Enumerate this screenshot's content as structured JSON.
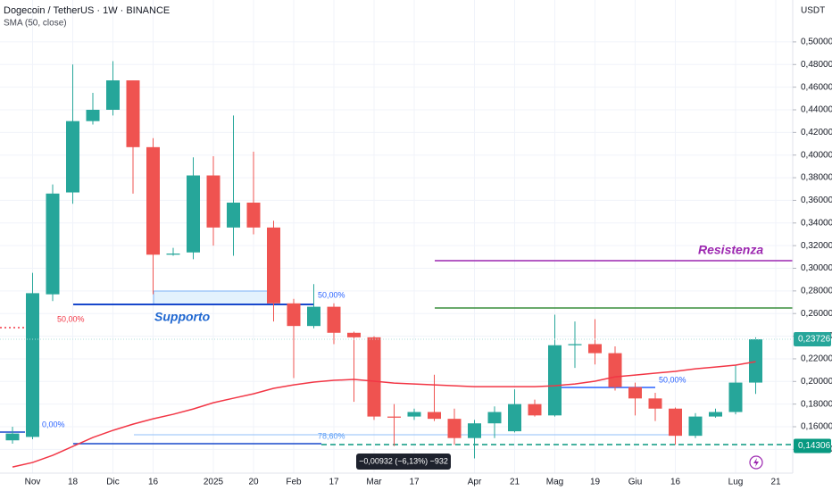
{
  "chart_data": {
    "type": "candlestick",
    "title": "Dogecoin / TetherUS · 1W · BINANCE",
    "y_axis_label": "USDT",
    "categories": [
      null,
      "Nov",
      null,
      "18",
      null,
      "Dic",
      null,
      "16",
      null,
      null,
      "2025",
      null,
      "20",
      null,
      "Feb",
      null,
      "17",
      null,
      "Mar",
      null,
      "17",
      null,
      null,
      "Apr",
      null,
      "21",
      null,
      "Mag",
      null,
      "19",
      null,
      "Giu",
      null,
      "16",
      null,
      null,
      "Lug",
      null,
      "21"
    ],
    "open": [
      0.148,
      0.151,
      0.277,
      0.367,
      0.43,
      0.44,
      0.466,
      0.407,
      0.312,
      0.314,
      0.382,
      0.336,
      0.358,
      0.336,
      0.269,
      0.249,
      0.266,
      0.243,
      0.239,
      0.169,
      0.169,
      0.173,
      0.167,
      0.15,
      0.163,
      0.156,
      0.18,
      0.17,
      0.232,
      0.233,
      0.225,
      0.195,
      0.185,
      0.176,
      0.152,
      0.169,
      0.173,
      0.199,
      null
    ],
    "high": [
      0.16,
      0.296,
      0.374,
      0.48,
      0.455,
      0.483,
      0.466,
      0.415,
      0.318,
      0.398,
      0.399,
      0.435,
      0.403,
      0.342,
      0.273,
      0.286,
      0.269,
      0.244,
      0.24,
      0.18,
      0.176,
      0.206,
      0.176,
      0.166,
      0.178,
      0.193,
      0.184,
      0.259,
      0.253,
      0.255,
      0.231,
      0.199,
      0.19,
      0.177,
      0.172,
      0.176,
      0.214,
      0.239,
      null
    ],
    "low": [
      0.145,
      0.149,
      0.271,
      0.357,
      0.427,
      0.435,
      0.366,
      0.277,
      0.311,
      0.308,
      0.32,
      0.311,
      0.33,
      0.253,
      0.203,
      0.247,
      0.233,
      0.182,
      0.166,
      0.143,
      0.166,
      0.165,
      0.144,
      0.132,
      0.15,
      0.155,
      0.169,
      0.169,
      0.212,
      0.215,
      0.192,
      0.17,
      0.165,
      0.144,
      0.15,
      0.168,
      0.171,
      0.189,
      null
    ],
    "close": [
      0.154,
      0.278,
      0.366,
      0.43,
      0.44,
      0.466,
      0.407,
      0.312,
      0.313,
      0.382,
      0.336,
      0.358,
      0.336,
      0.269,
      0.249,
      0.266,
      0.243,
      0.239,
      0.169,
      0.168,
      0.173,
      0.167,
      0.15,
      0.163,
      0.173,
      0.18,
      0.17,
      0.232,
      0.233,
      0.225,
      0.195,
      0.185,
      0.176,
      0.152,
      0.169,
      0.173,
      0.199,
      0.23726,
      null
    ],
    "up_color": "#26a69a",
    "down_color": "#ef5350",
    "sma": {
      "name": "SMA (50, close)",
      "color": "#f23645",
      "values": [
        0.1244,
        0.1284,
        0.1347,
        0.1426,
        0.1505,
        0.1568,
        0.1623,
        0.167,
        0.171,
        0.1757,
        0.1812,
        0.1852,
        0.1891,
        0.1939,
        0.197,
        0.1994,
        0.201,
        0.2018,
        0.2002,
        0.1986,
        0.1978,
        0.197,
        0.1962,
        0.1954,
        0.1954,
        0.1954,
        0.1954,
        0.1962,
        0.1978,
        0.2002,
        0.2041,
        0.2057,
        0.2073,
        0.2089,
        0.2112,
        0.2128,
        0.2144,
        0.2175,
        null
      ]
    },
    "ylim": [
      0.119,
      0.537
    ],
    "yticks": [
      {
        "value": 0.14,
        "label": "0,14000"
      },
      {
        "value": 0.16,
        "label": "0,16000"
      },
      {
        "value": 0.18,
        "label": "0,18000"
      },
      {
        "value": 0.2,
        "label": "0,20000"
      },
      {
        "value": 0.22,
        "label": "0,22000"
      },
      {
        "value": 0.24,
        "label": "0,24000"
      },
      {
        "value": 0.26,
        "label": "0,26000"
      },
      {
        "value": 0.28,
        "label": "0,28000"
      },
      {
        "value": 0.3,
        "label": "0,30000"
      },
      {
        "value": 0.32,
        "label": "0,32000"
      },
      {
        "value": 0.34,
        "label": "0,34000"
      },
      {
        "value": 0.36,
        "label": "0,36000"
      },
      {
        "value": 0.38,
        "label": "0,38000"
      },
      {
        "value": 0.4,
        "label": "0,40000"
      },
      {
        "value": 0.42,
        "label": "0,42000"
      },
      {
        "value": 0.44,
        "label": "0,44000"
      },
      {
        "value": 0.46,
        "label": "0,46000"
      },
      {
        "value": 0.48,
        "label": "0,48000"
      },
      {
        "value": 0.5,
        "label": "0,50000"
      }
    ],
    "grid": true,
    "price_tags": [
      {
        "value": 0.23726,
        "label": "0,23726",
        "color": "#26a69a"
      },
      {
        "value": 0.14306,
        "label": "0,14306",
        "color": "#089981"
      }
    ],
    "annotations": {
      "resistance": "Resistenza",
      "support": "Supporto",
      "fib_labels": [
        "50,00%",
        "50,00%",
        "50,00%",
        "78,60%",
        "0,00%"
      ],
      "measure": "−0,00932 (−6,13%) −932"
    }
  }
}
